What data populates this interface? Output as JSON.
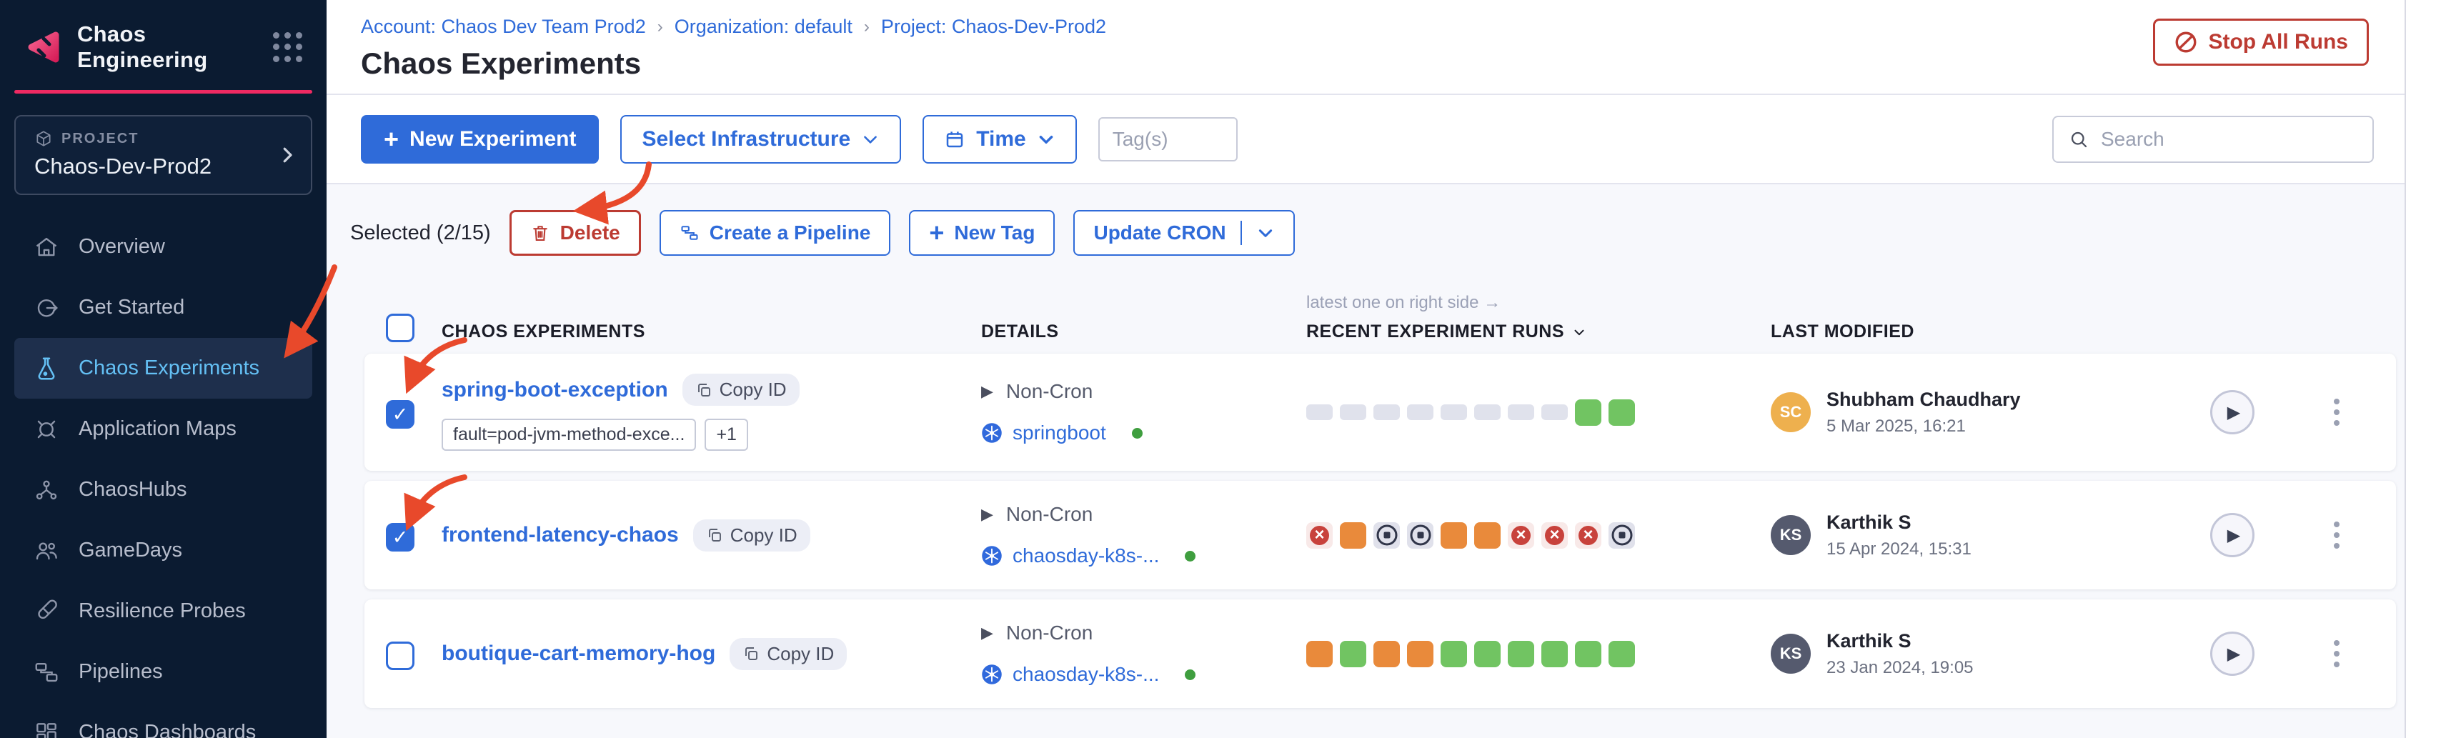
{
  "sidebar": {
    "brand": "Chaos Engineering",
    "project": {
      "label": "PROJECT",
      "name": "Chaos-Dev-Prod2"
    },
    "items": [
      {
        "label": "Overview",
        "icon": "home",
        "active": false
      },
      {
        "label": "Get Started",
        "icon": "get-started",
        "active": false
      },
      {
        "label": "Chaos Experiments",
        "icon": "flask",
        "active": true
      },
      {
        "label": "Application Maps",
        "icon": "target",
        "active": false
      },
      {
        "label": "ChaosHubs",
        "icon": "hub",
        "active": false
      },
      {
        "label": "GameDays",
        "icon": "people",
        "active": false
      },
      {
        "label": "Resilience Probes",
        "icon": "probe",
        "active": false
      },
      {
        "label": "Pipelines",
        "icon": "pipeline",
        "active": false
      },
      {
        "label": "Chaos Dashboards",
        "icon": "dashboard",
        "active": false
      }
    ]
  },
  "header": {
    "breadcrumb": {
      "items": [
        "Account: Chaos Dev Team Prod2",
        "Organization: default",
        "Project: Chaos-Dev-Prod2"
      ],
      "separator": "›"
    },
    "title": "Chaos Experiments",
    "stop_all_runs": "Stop All Runs"
  },
  "toolbar": {
    "new_experiment": "New Experiment",
    "select_infrastructure": "Select Infrastructure",
    "time": "Time",
    "tags_placeholder": "Tag(s)",
    "search_placeholder": "Search"
  },
  "selection_bar": {
    "summary": "Selected (2/15)",
    "delete": "Delete",
    "create_pipeline": "Create a Pipeline",
    "new_tag": "New Tag",
    "update_cron": "Update CRON"
  },
  "table": {
    "order_note": "latest one on right side →",
    "headers": {
      "experiments": "CHAOS EXPERIMENTS",
      "details": "DETAILS",
      "runs": "RECENT EXPERIMENT RUNS",
      "modified": "LAST MODIFIED"
    },
    "rows": [
      {
        "name": "spring-boot-exception",
        "copy_id": "Copy ID",
        "checked": true,
        "tags": [
          "fault=pod-jvm-method-exce...",
          "+1"
        ],
        "schedule": "Non-Cron",
        "infrastructure": "springboot",
        "runs": [
          "empty",
          "empty",
          "empty",
          "empty",
          "empty",
          "empty",
          "empty",
          "empty",
          "success",
          "success"
        ],
        "modified_by": "Shubham Chaudhary",
        "modified_at": "5 Mar 2025, 16:21",
        "avatar": {
          "initials": "SC",
          "color": "#eeb04e"
        }
      },
      {
        "name": "frontend-latency-chaos",
        "copy_id": "Copy ID",
        "checked": true,
        "tags": [],
        "schedule": "Non-Cron",
        "infrastructure": "chaosday-k8s-...",
        "runs": [
          "failed",
          "running",
          "stopped",
          "stopped",
          "running",
          "running",
          "failed",
          "failed",
          "failed",
          "stopped"
        ],
        "modified_by": "Karthik S",
        "modified_at": "15 Apr 2024, 15:31",
        "avatar": {
          "initials": "KS",
          "color": "#555a6e"
        }
      },
      {
        "name": "boutique-cart-memory-hog",
        "copy_id": "Copy ID",
        "checked": false,
        "tags": [],
        "schedule": "Non-Cron",
        "infrastructure": "chaosday-k8s-...",
        "runs": [
          "running",
          "success",
          "running",
          "running",
          "success",
          "success",
          "success",
          "success",
          "success",
          "success"
        ],
        "modified_by": "Karthik S",
        "modified_at": "23 Jan 2024, 19:05",
        "avatar": {
          "initials": "KS",
          "color": "#555a6e"
        }
      }
    ]
  },
  "status_colors": {
    "success": "#71c462",
    "running": "#e98a3b",
    "failed": "#c8423c",
    "stopped": "#31364a",
    "empty": "#e0e2ec",
    "infra_active": "#3f9e3f"
  },
  "theme": {
    "primary_blue": "#2f6bd9",
    "danger_red": "#bc3b32",
    "sidebar_bg": "#0b1b31",
    "accent_pink": "#ef2a62",
    "annotation_red": "#e8492b"
  },
  "annotations": [
    {
      "type": "arrow",
      "points_to": "delete-button"
    },
    {
      "type": "arrow",
      "points_to": "sidebar-item-chaos-experiments"
    },
    {
      "type": "arrow",
      "points_to": "row-checkbox-spring-boot-exception"
    },
    {
      "type": "arrow",
      "points_to": "row-checkbox-frontend-latency-chaos"
    }
  ]
}
